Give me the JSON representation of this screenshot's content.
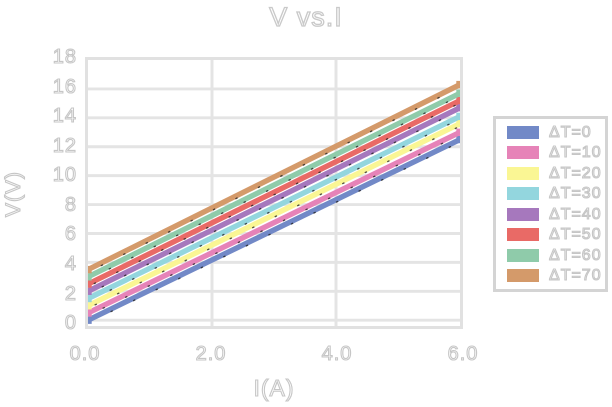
{
  "chart_data": {
    "type": "line",
    "title": "V vs.I",
    "xlabel": "I(A)",
    "ylabel": "V(V)",
    "x": [
      0,
      6
    ],
    "xlim": [
      0,
      6
    ],
    "ylim": [
      -0.4,
      18
    ],
    "xticks": [
      "0.0",
      "2.0",
      "4.0",
      "6.0"
    ],
    "xtick_values": [
      0,
      2,
      4,
      6
    ],
    "yticks": [
      "18",
      "16",
      "14",
      "12",
      "10",
      "8",
      "6",
      "4",
      "2",
      "0"
    ],
    "ytick_values": [
      18,
      16,
      14,
      12,
      10,
      8,
      6,
      4,
      2,
      0
    ],
    "grid": true,
    "legend_position": "right",
    "marker": "square",
    "series": [
      {
        "name": "ΔT=0",
        "color": "#7289c7",
        "values": [
          0.0,
          12.5
        ]
      },
      {
        "name": "ΔT=10",
        "color": "#e683b8",
        "values": [
          0.5,
          13.0
        ]
      },
      {
        "name": "ΔT=20",
        "color": "#faf694",
        "values": [
          1.0,
          13.6
        ]
      },
      {
        "name": "ΔT=30",
        "color": "#93d6de",
        "values": [
          1.5,
          14.1
        ]
      },
      {
        "name": "ΔT=40",
        "color": "#a678bd",
        "values": [
          2.0,
          14.7
        ]
      },
      {
        "name": "ΔT=50",
        "color": "#e96a66",
        "values": [
          2.5,
          15.2
        ]
      },
      {
        "name": "ΔT=60",
        "color": "#8fcbaa",
        "values": [
          3.0,
          15.7
        ]
      },
      {
        "name": "ΔT=70",
        "color": "#d49a6a",
        "values": [
          3.5,
          16.3
        ]
      }
    ],
    "styles": {
      "grid_color": "#e4e4e4",
      "frame_color": "#e1e1e1",
      "text_outline": "#c6c6c6",
      "legend_border": "#d4d4d4",
      "sketch_dash_color": "#1a1a1a"
    }
  }
}
